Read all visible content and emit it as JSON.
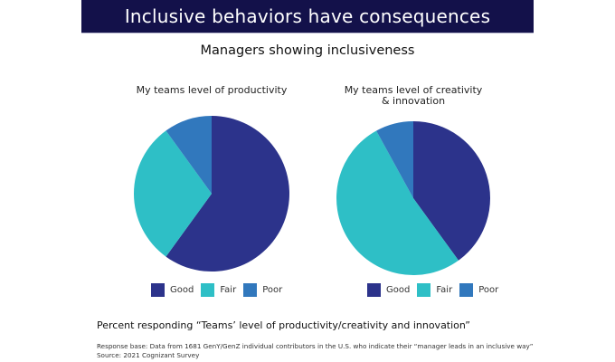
{
  "header": {
    "title": "Inclusive behaviors have consequences"
  },
  "subtitle": "Managers showing inclusiveness",
  "chart_data": [
    {
      "type": "pie",
      "title": "My teams level of productivity",
      "categories": [
        "Good",
        "Fair",
        "Poor"
      ],
      "values": [
        60,
        30,
        10
      ],
      "colors": [
        "#2c338b",
        "#2ebfc6",
        "#3178bd"
      ],
      "start": "12 o'clock",
      "direction": "clockwise",
      "legend": "bottom"
    },
    {
      "type": "pie",
      "title": "My teams level of creativity & innovation",
      "title_lines": [
        "My teams level of creativity",
        "& innovation"
      ],
      "categories": [
        "Good",
        "Fair",
        "Poor"
      ],
      "values": [
        40,
        52,
        8
      ],
      "colors": [
        "#2c338b",
        "#2ebfc6",
        "#3178bd"
      ],
      "start": "12 o'clock",
      "direction": "clockwise",
      "legend": "bottom"
    }
  ],
  "footer": {
    "question": "Percent responding “Teams’ level of productivity/creativity and innovation”",
    "base": "Response base: Data from 1681 GenY/GenZ individual contributors in the U.S. who indicate their “manager leads in an inclusive way”",
    "source": "Source: 2021 Cognizant Survey"
  }
}
